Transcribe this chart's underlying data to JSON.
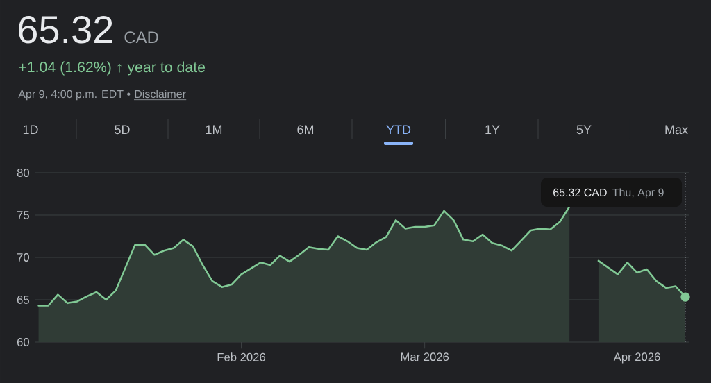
{
  "chart_data": {
    "type": "area",
    "title": "65.32",
    "annotations": [
      "CAD",
      "+1.04 (1.62%) ↑ year to date",
      "Apr 9, 4:00 p.m. EDT •",
      "Disclaimer",
      "1D",
      "5D",
      "1M",
      "6M",
      "YTD",
      "1Y",
      "5Y",
      "Max",
      "65.32 CAD",
      "Thu, Apr 9"
    ],
    "categories": [
      null,
      null,
      null,
      null,
      null,
      null,
      null,
      null,
      null,
      null,
      null,
      null,
      null,
      null,
      null,
      null,
      null,
      null,
      null,
      null,
      null,
      "Feb 2026",
      null,
      null,
      null,
      null,
      null,
      null,
      null,
      null,
      null,
      null,
      null,
      null,
      null,
      null,
      null,
      null,
      null,
      null,
      "Mar 2026",
      null,
      null,
      null,
      null,
      null,
      null,
      null,
      null,
      null,
      null,
      null,
      null,
      null,
      null,
      null,
      null,
      null,
      null,
      null,
      null,
      null,
      "Apr 2026",
      null,
      null,
      null,
      null,
      null
    ],
    "series": [
      {
        "color": "#81c995",
        "line_style": "solid",
        "values": [
          64.3,
          64.3,
          65.6,
          64.6,
          64.8,
          65.4,
          65.9,
          65.0,
          66.1,
          68.8,
          71.5,
          71.5,
          70.3,
          70.8,
          71.1,
          72.1,
          71.3,
          69.1,
          67.2,
          66.5,
          66.8,
          68.0,
          68.7,
          69.4,
          69.1,
          70.2,
          69.5,
          70.3,
          71.2,
          71.0,
          70.9,
          72.5,
          71.9,
          71.1,
          70.9,
          71.8,
          72.4,
          74.4,
          73.4,
          73.6,
          73.6,
          73.8,
          75.5,
          74.4,
          72.1,
          71.9,
          72.7,
          71.7,
          71.4,
          70.8,
          72.0,
          73.2,
          73.4,
          73.3,
          74.2,
          76.0,
          null,
          null,
          69.6,
          68.8,
          68.0,
          69.4,
          68.2,
          68.6,
          67.2,
          66.4,
          66.6,
          65.32
        ]
      }
    ],
    "ylim": [
      60,
      80
    ],
    "yticks": [
      60,
      65,
      70,
      75,
      80
    ],
    "grid": "y"
  }
}
